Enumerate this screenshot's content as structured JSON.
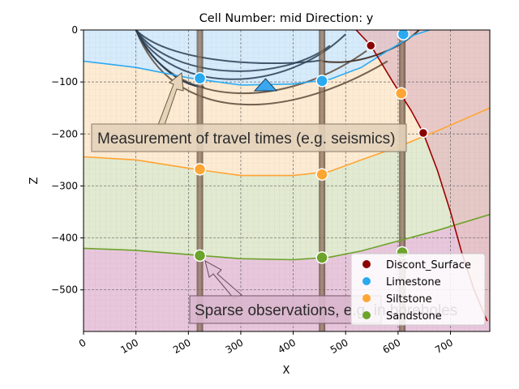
{
  "chart_data": {
    "type": "scatter",
    "title": "Cell Number: mid Direction: y",
    "xlabel": "X",
    "ylabel": "Z",
    "xlim": [
      0,
      775
    ],
    "ylim": [
      -580,
      0
    ],
    "x_ticks": [
      0,
      100,
      200,
      300,
      400,
      500,
      600,
      700
    ],
    "y_ticks": [
      0,
      -100,
      -200,
      -300,
      -400,
      -500
    ],
    "grid": true,
    "legend_position": "lower-right",
    "colors": {
      "Discont_Surface": "#8b0000",
      "Limestone": "#2aa9f0",
      "Siltstone": "#ffa534",
      "Sandstone": "#6ca32a",
      "layer_top": "#d6ebfb",
      "layer_2": "#fdebd3",
      "layer_3": "#e2ead1",
      "layer_4": "#e8c7dc",
      "fault_block": "#e5c3c6"
    },
    "series": [
      {
        "name": "Discont_Surface",
        "points": [
          [
            548,
            -30
          ],
          [
            648,
            -198
          ]
        ]
      },
      {
        "name": "Limestone",
        "points": [
          [
            222,
            -93
          ],
          [
            455,
            -98
          ],
          [
            610,
            -8
          ]
        ]
      },
      {
        "name": "Siltstone",
        "points": [
          [
            222,
            -268
          ],
          [
            455,
            -278
          ],
          [
            606,
            -122
          ]
        ]
      },
      {
        "name": "Sandstone",
        "points": [
          [
            222,
            -434
          ],
          [
            455,
            -438
          ],
          [
            608,
            -428
          ]
        ]
      }
    ],
    "contacts": {
      "limestone_base": [
        [
          0,
          -60
        ],
        [
          100,
          -72
        ],
        [
          200,
          -92
        ],
        [
          300,
          -106
        ],
        [
          400,
          -104
        ],
        [
          470,
          -95
        ],
        [
          530,
          -72
        ],
        [
          580,
          -40
        ],
        [
          630,
          -10
        ],
        [
          660,
          0
        ]
      ],
      "siltstone_base": [
        [
          0,
          -244
        ],
        [
          100,
          -250
        ],
        [
          200,
          -266
        ],
        [
          300,
          -280
        ],
        [
          400,
          -280
        ],
        [
          470,
          -272
        ],
        [
          530,
          -250
        ],
        [
          600,
          -225
        ],
        [
          680,
          -192
        ],
        [
          775,
          -150
        ]
      ],
      "sandstone_base": [
        [
          0,
          -420
        ],
        [
          100,
          -424
        ],
        [
          200,
          -432
        ],
        [
          300,
          -440
        ],
        [
          400,
          -442
        ],
        [
          470,
          -437
        ],
        [
          530,
          -425
        ],
        [
          600,
          -406
        ],
        [
          680,
          -384
        ],
        [
          775,
          -355
        ]
      ],
      "fault": [
        [
          520,
          0
        ],
        [
          548,
          -30
        ],
        [
          590,
          -100
        ],
        [
          625,
          -155
        ],
        [
          648,
          -198
        ],
        [
          675,
          -270
        ],
        [
          700,
          -350
        ],
        [
          722,
          -430
        ],
        [
          745,
          -500
        ],
        [
          770,
          -560
        ]
      ]
    },
    "annotations": [
      {
        "text": "Measurement of travel times (e.g. seismics)",
        "arrow_to": [
          180,
          -90
        ]
      },
      {
        "text": "Sparse observations, e.g. in boreholes",
        "arrow_to": [
          225,
          -440
        ]
      }
    ]
  }
}
